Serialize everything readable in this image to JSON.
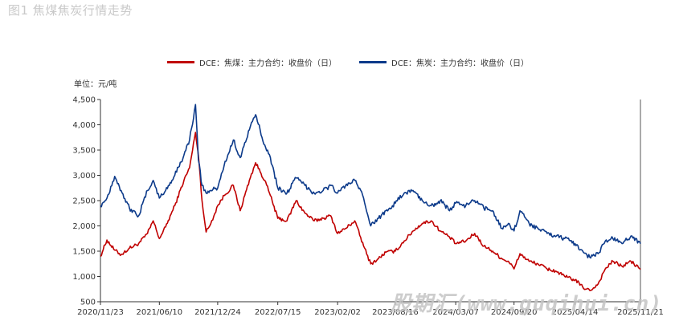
{
  "figure_title": "图1 焦煤焦炭行情走势",
  "unit_label": "单位：元/吨",
  "watermark": "股期汇(www.guqihui.cn)",
  "colors": {
    "coking_coal": "#c00000",
    "coke": "#0c3a8a",
    "axis": "#333333"
  },
  "chart_data": {
    "type": "line",
    "title": "",
    "xlabel": "",
    "ylabel": "单位：元/吨",
    "ylim": [
      500,
      4500
    ],
    "yticks": [
      500,
      1000,
      1500,
      2000,
      2500,
      3000,
      3500,
      4000,
      4500
    ],
    "ytick_labels": [
      "500",
      "1,000",
      "1,500",
      "2,000",
      "2,500",
      "3,000",
      "3,500",
      "4,000",
      "4,500"
    ],
    "xticks": [
      "2020/11/23",
      "2021/06/10",
      "2021/12/24",
      "2022/07/15",
      "2023/02/02",
      "2023/08/16",
      "2024/03/07",
      "2024/09/20",
      "2025/04/14",
      "2025/11/21"
    ],
    "grid": false,
    "legend_position": "top-center",
    "series": [
      {
        "name": "DCE：焦煤：主力合约：收盘价（日）",
        "color": "#c00000",
        "x": [
          "2020/11/23",
          "2020/12/15",
          "2021/01/10",
          "2021/02/01",
          "2021/03/01",
          "2021/04/01",
          "2021/05/01",
          "2021/05/20",
          "2021/06/10",
          "2021/07/01",
          "2021/08/01",
          "2021/09/01",
          "2021/09/20",
          "2021/10/10",
          "2021/10/20",
          "2021/11/01",
          "2021/11/15",
          "2021/12/01",
          "2021/12/24",
          "2022/01/15",
          "2022/02/15",
          "2022/03/10",
          "2022/04/10",
          "2022/05/01",
          "2022/06/01",
          "2022/06/20",
          "2022/07/15",
          "2022/08/15",
          "2022/09/15",
          "2022/10/15",
          "2022/11/15",
          "2022/12/15",
          "2023/01/10",
          "2023/02/02",
          "2023/03/01",
          "2023/04/01",
          "2023/05/01",
          "2023/05/25",
          "2023/06/20",
          "2023/07/15",
          "2023/08/16",
          "2023/09/15",
          "2023/10/15",
          "2023/11/15",
          "2023/12/15",
          "2024/01/15",
          "2024/02/15",
          "2024/03/07",
          "2024/04/10",
          "2024/05/10",
          "2024/06/10",
          "2024/07/10",
          "2024/08/10",
          "2024/09/01",
          "2024/09/20",
          "2024/10/10",
          "2024/11/10",
          "2024/12/10",
          "2025/01/10",
          "2025/02/10",
          "2025/03/10",
          "2025/04/14",
          "2025/05/10",
          "2025/06/03",
          "2025/07/01",
          "2025/07/25",
          "2025/08/20",
          "2025/09/20",
          "2025/10/20",
          "2025/11/21"
        ],
        "y": [
          1400,
          1720,
          1520,
          1430,
          1560,
          1650,
          1850,
          2100,
          1750,
          1980,
          2400,
          2900,
          3150,
          3850,
          3400,
          2500,
          1880,
          2050,
          2400,
          2600,
          2800,
          2300,
          2900,
          3250,
          2900,
          2600,
          2150,
          2100,
          2500,
          2250,
          2100,
          2150,
          2200,
          1850,
          1950,
          2100,
          1600,
          1250,
          1350,
          1480,
          1500,
          1700,
          1900,
          2050,
          2100,
          1900,
          1780,
          1650,
          1700,
          1850,
          1600,
          1500,
          1350,
          1300,
          1150,
          1450,
          1300,
          1250,
          1150,
          1100,
          1000,
          930,
          790,
          720,
          850,
          1150,
          1300,
          1200,
          1300,
          1140
        ]
      },
      {
        "name": "DCE：焦炭：主力合约：收盘价（日）",
        "color": "#0c3a8a",
        "x": [
          "2020/11/23",
          "2020/12/15",
          "2021/01/10",
          "2021/02/01",
          "2021/03/01",
          "2021/04/01",
          "2021/05/01",
          "2021/05/20",
          "2021/06/10",
          "2021/07/01",
          "2021/08/01",
          "2021/09/01",
          "2021/09/20",
          "2021/10/10",
          "2021/10/20",
          "2021/11/01",
          "2021/11/15",
          "2021/12/01",
          "2021/12/24",
          "2022/01/15",
          "2022/02/15",
          "2022/03/10",
          "2022/04/10",
          "2022/05/01",
          "2022/06/01",
          "2022/06/20",
          "2022/07/15",
          "2022/08/15",
          "2022/09/15",
          "2022/10/15",
          "2022/11/15",
          "2022/12/15",
          "2023/01/10",
          "2023/02/02",
          "2023/03/01",
          "2023/04/01",
          "2023/05/01",
          "2023/05/25",
          "2023/06/20",
          "2023/07/15",
          "2023/08/16",
          "2023/09/15",
          "2023/10/15",
          "2023/11/15",
          "2023/12/15",
          "2024/01/15",
          "2024/02/15",
          "2024/03/07",
          "2024/04/10",
          "2024/05/10",
          "2024/06/10",
          "2024/07/10",
          "2024/08/10",
          "2024/09/01",
          "2024/09/20",
          "2024/10/10",
          "2024/11/10",
          "2024/12/10",
          "2025/01/10",
          "2025/02/10",
          "2025/03/10",
          "2025/04/14",
          "2025/05/10",
          "2025/06/03",
          "2025/07/01",
          "2025/07/25",
          "2025/08/20",
          "2025/09/20",
          "2025/10/20",
          "2025/11/21"
        ],
        "y": [
          2400,
          2550,
          2980,
          2700,
          2350,
          2200,
          2700,
          2900,
          2550,
          2700,
          3000,
          3400,
          3700,
          4400,
          3300,
          2800,
          2650,
          2700,
          2750,
          3200,
          3700,
          3350,
          3900,
          4200,
          3600,
          3350,
          2750,
          2650,
          2950,
          2800,
          2650,
          2700,
          2800,
          2650,
          2800,
          2900,
          2550,
          2000,
          2150,
          2300,
          2450,
          2650,
          2700,
          2500,
          2400,
          2500,
          2300,
          2450,
          2400,
          2500,
          2350,
          2300,
          1950,
          2050,
          1900,
          2300,
          2050,
          1950,
          1850,
          1800,
          1750,
          1650,
          1500,
          1380,
          1450,
          1700,
          1750,
          1650,
          1800,
          1650
        ]
      }
    ]
  }
}
